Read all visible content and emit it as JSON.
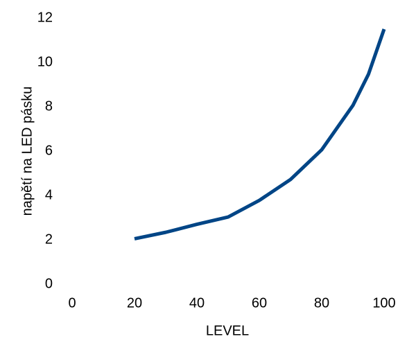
{
  "chart_data": {
    "type": "line",
    "x_label": "LEVEL",
    "y_label": "napětí na LED pásku",
    "x": [
      20,
      30,
      40,
      50,
      60,
      70,
      80,
      90,
      95,
      100
    ],
    "series": [
      {
        "name": "napětí",
        "color": "#004586",
        "values": [
          2.05,
          2.34,
          2.7,
          3.03,
          3.78,
          4.72,
          6.06,
          8.06,
          9.47,
          11.5
        ]
      }
    ],
    "xlim": [
      0,
      100
    ],
    "xticks": [
      0,
      20,
      40,
      60,
      80,
      100
    ],
    "ylim": [
      0,
      12
    ],
    "yticks": [
      0,
      2,
      4,
      6,
      8,
      10,
      12
    ],
    "grid": false
  }
}
